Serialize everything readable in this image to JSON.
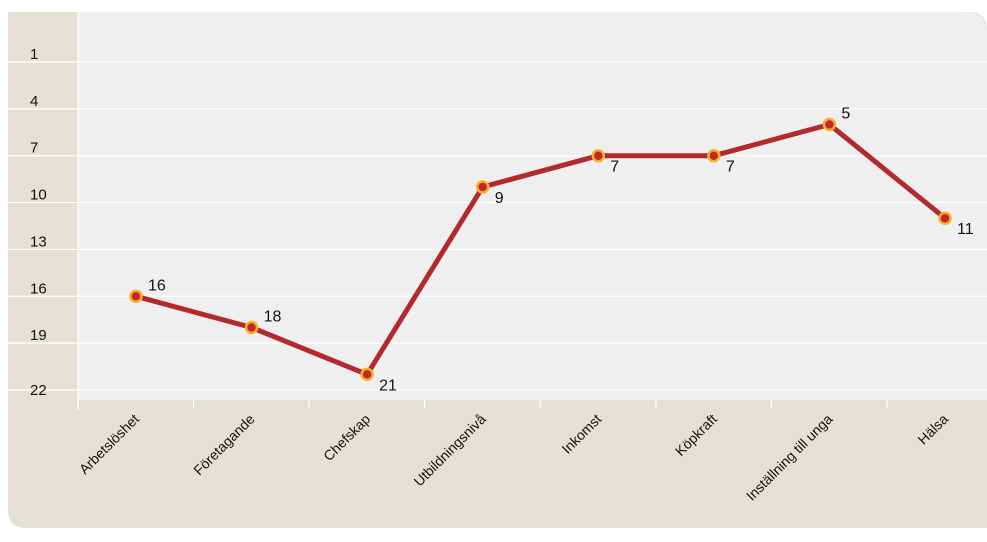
{
  "chart_data": {
    "type": "line",
    "title": "",
    "xlabel": "",
    "ylabel": "",
    "categories": [
      "Arbetslöshet",
      "Företagande",
      "Chefskap",
      "Utbildningsnivå",
      "Inkomst",
      "Köpkraft",
      "Inställning till unga",
      "Hälsa"
    ],
    "series": [
      {
        "values": [
          16,
          18,
          21,
          9,
          7,
          7,
          5,
          11
        ]
      }
    ],
    "y_reversed": true,
    "ylim": [
      -2,
      22
    ],
    "yticks": [
      1,
      4,
      7,
      10,
      13,
      16,
      19,
      22
    ],
    "grid": true,
    "legend": "none",
    "colors": {
      "line": "#b22a2e",
      "marker_fill": "#c0282d",
      "marker_ring": "#f6b02a",
      "plot_bg": "#efefef",
      "frame_bg": "#e5e0d5",
      "grid": "#ffffff"
    }
  }
}
